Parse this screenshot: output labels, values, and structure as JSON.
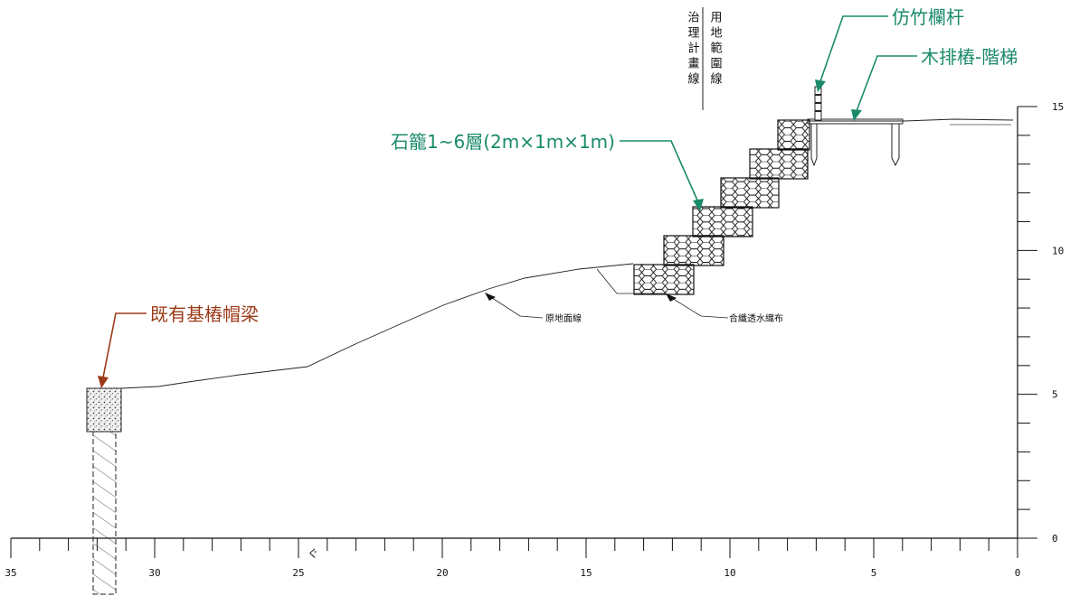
{
  "colors": {
    "callout_green": "#1a8a6a",
    "callout_red": "#9b3a18",
    "line": "#111111"
  },
  "callouts": {
    "pile_cap": "既有基樁帽梁",
    "gabion": "石籠1~6層(2m×1m×1m)",
    "railing": "仿竹欄杆",
    "stairs": "木排樁-階梯"
  },
  "annotations": {
    "original_ground": "原地面線",
    "geotextile": "合纖透水織布",
    "land_boundary": "用地範圍線",
    "treatment_line": "治理計畫線",
    "scrawl": "ぐ"
  },
  "x_axis": {
    "major_ticks": [
      "35",
      "30",
      "25",
      "20",
      "15",
      "10",
      "5",
      "0"
    ]
  },
  "y_axis": {
    "major_ticks": [
      "0",
      "5",
      "10",
      "15"
    ]
  }
}
